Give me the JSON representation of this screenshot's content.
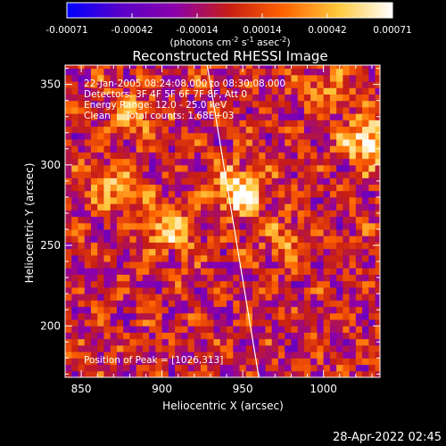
{
  "chart_data": {
    "type": "heatmap",
    "title": "Reconstructed RHESSI Image",
    "xlabel": "Heliocentric X (arcsec)",
    "ylabel": "Heliocentric Y (arcsec)",
    "xlim": [
      840,
      1035
    ],
    "ylim": [
      168,
      362
    ],
    "x_ticks": [
      850,
      900,
      950,
      1000
    ],
    "y_ticks": [
      200,
      250,
      300,
      350
    ],
    "colorbar": {
      "ticks": [
        "-0.00071",
        "-0.00042",
        "-0.00014",
        "0.00014",
        "0.00042",
        "0.00071"
      ],
      "range": [
        -0.00071,
        0.00071
      ],
      "label_prefix": "(photons cm",
      "label_sup1": "-2",
      "label_mid": " s",
      "label_sup2": "-1",
      "label_mid2": " asec",
      "label_sup3": "-2",
      "label_suffix": ")",
      "colormap": [
        "#0000ff",
        "#5a00c8",
        "#8c00aa",
        "#c81e14",
        "#ff6400",
        "#ffc83c",
        "#ffffff"
      ]
    },
    "annotations": [
      "22-Jan-2005 08:24:08.000 to 08:30:08.000",
      "Detectors: 3F 4F 5F 6F 7F 8F, Att 0",
      "Energy Range: 12.0 - 25.0 keV",
      "Clean     Total counts: 1.68E+03"
    ],
    "peak_label": "Position of Peak = [1026,313]",
    "peak": [
      1026,
      313
    ],
    "limb_line": [
      [
        928,
        362
      ],
      [
        960,
        168
      ]
    ],
    "bright_sources": [
      {
        "x": 945,
        "y": 282,
        "value": 0.00071
      },
      {
        "x": 902,
        "y": 258,
        "value": 0.00052
      },
      {
        "x": 1026,
        "y": 313,
        "value": 0.00071
      },
      {
        "x": 870,
        "y": 285,
        "value": 0.0004
      },
      {
        "x": 880,
        "y": 330,
        "value": 0.00035
      },
      {
        "x": 1000,
        "y": 345,
        "value": 0.0003
      },
      {
        "x": 975,
        "y": 250,
        "value": 0.00028
      }
    ]
  },
  "timestamp": "28-Apr-2022 02:45"
}
